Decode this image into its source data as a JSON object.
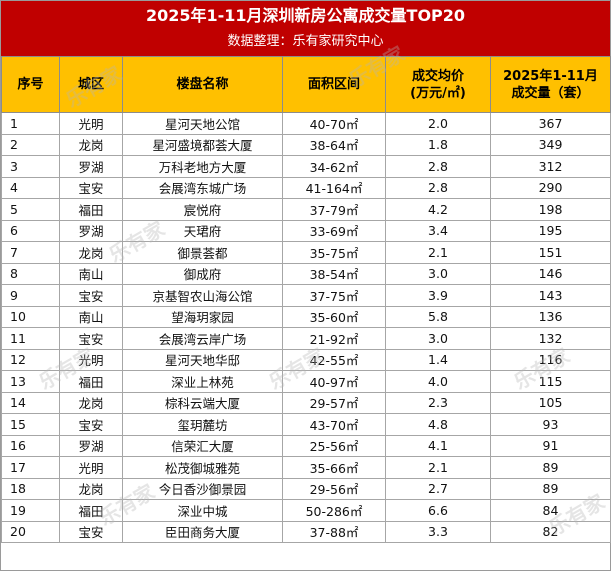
{
  "header": {
    "title": "2025年1-11月深圳新房公寓成交量TOP20",
    "subtitle": "数据整理：乐有家研究中心"
  },
  "table": {
    "columns": [
      "序号",
      "城区",
      "楼盘名称",
      "面积区间",
      "成交均价\n(万元/㎡)",
      "2025年1-11月\n成交量（套）"
    ],
    "rows": [
      [
        "1",
        "光明",
        "星河天地公馆",
        "40-70㎡",
        "2.0",
        "367"
      ],
      [
        "2",
        "龙岗",
        "星河盛境都荟大厦",
        "38-64㎡",
        "1.8",
        "349"
      ],
      [
        "3",
        "罗湖",
        "万科老地方大厦",
        "34-62㎡",
        "2.8",
        "312"
      ],
      [
        "4",
        "宝安",
        "会展湾东城广场",
        "41-164㎡",
        "2.8",
        "290"
      ],
      [
        "5",
        "福田",
        "宸悦府",
        "37-79㎡",
        "4.2",
        "198"
      ],
      [
        "6",
        "罗湖",
        "天珺府",
        "33-69㎡",
        "3.4",
        "195"
      ],
      [
        "7",
        "龙岗",
        "御景荟都",
        "35-75㎡",
        "2.1",
        "151"
      ],
      [
        "8",
        "南山",
        "御成府",
        "38-54㎡",
        "3.0",
        "146"
      ],
      [
        "9",
        "宝安",
        "京基智农山海公馆",
        "37-75㎡",
        "3.9",
        "143"
      ],
      [
        "10",
        "南山",
        "望海玥家园",
        "35-60㎡",
        "5.8",
        "136"
      ],
      [
        "11",
        "宝安",
        "会展湾云岸广场",
        "21-92㎡",
        "3.0",
        "132"
      ],
      [
        "12",
        "光明",
        "星河天地华邸",
        "42-55㎡",
        "1.4",
        "116"
      ],
      [
        "13",
        "福田",
        "深业上林苑",
        "40-97㎡",
        "4.0",
        "115"
      ],
      [
        "14",
        "龙岗",
        "棕科云端大厦",
        "29-57㎡",
        "2.3",
        "105"
      ],
      [
        "15",
        "宝安",
        "玺玥麓坊",
        "43-70㎡",
        "4.8",
        "93"
      ],
      [
        "16",
        "罗湖",
        "信荣汇大厦",
        "25-56㎡",
        "4.1",
        "91"
      ],
      [
        "17",
        "光明",
        "松茂御城雅苑",
        "35-66㎡",
        "2.1",
        "89"
      ],
      [
        "18",
        "龙岗",
        "今日香沙御景园",
        "29-56㎡",
        "2.7",
        "89"
      ],
      [
        "19",
        "福田",
        "深业中城",
        "50-286㎡",
        "6.6",
        "84"
      ],
      [
        "20",
        "宝安",
        "臣田商务大厦",
        "37-88㎡",
        "3.3",
        "82"
      ]
    ]
  },
  "watermark": "乐有家",
  "colors": {
    "banner": "#c00000",
    "header_fill": "#ffc000"
  }
}
